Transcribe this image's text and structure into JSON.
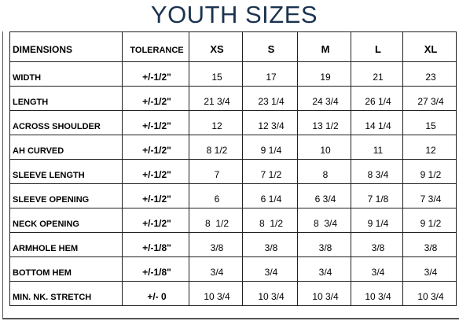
{
  "title": "YOUTH SIZES",
  "table": {
    "header": [
      "DIMENSIONS",
      "TOLERANCE",
      "XS",
      "S",
      "M",
      "L",
      "XL"
    ],
    "rows": [
      [
        "WIDTH",
        "+/-1/2\"",
        "15",
        "17",
        "19",
        "21",
        "23"
      ],
      [
        "LENGTH",
        "+/-1/2\"",
        "21 3/4",
        "23 1/4",
        "24 3/4",
        "26 1/4",
        "27 3/4"
      ],
      [
        "ACROSS SHOULDER",
        "+/-1/2\"",
        "12",
        "12 3/4",
        "13 1/2",
        "14 1/4",
        "15"
      ],
      [
        "AH CURVED",
        "+/-1/2\"",
        "8 1/2",
        "9 1/4",
        "10",
        "11",
        "12"
      ],
      [
        "SLEEVE LENGTH",
        "+/-1/2\"",
        "7",
        "7 1/2",
        "8",
        "8 3/4",
        "9 1/2"
      ],
      [
        "SLEEVE OPENING",
        "+/-1/2\"",
        "6",
        "6 1/4",
        "6 3/4",
        "7 1/8",
        "7 3/4"
      ],
      [
        "NECK OPENING",
        "+/-1/2\"",
        "8  1/2",
        "8  1/2",
        "8  3/4",
        "9 1/4",
        "9 1/2"
      ],
      [
        "ARMHOLE HEM",
        "+/-1/8\"",
        "3/8",
        "3/8",
        "3/8",
        "3/8",
        "3/8"
      ],
      [
        "BOTTOM HEM",
        "+/-1/8\"",
        "3/4",
        "3/4",
        "3/4",
        "3/4",
        "3/4"
      ],
      [
        "MIN. NK. STRETCH",
        "+/- 0",
        "10 3/4",
        "10 3/4",
        "10 3/4",
        "10 3/4",
        "10 3/4"
      ]
    ]
  }
}
